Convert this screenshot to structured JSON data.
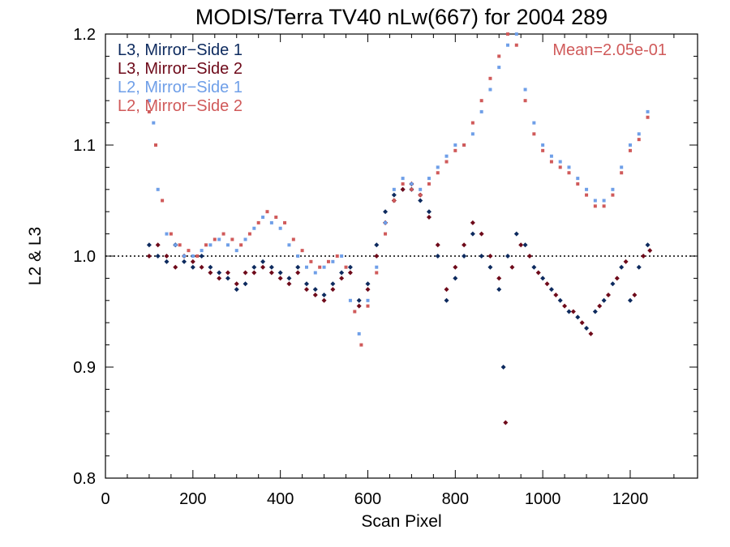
{
  "chart_data": {
    "type": "scatter",
    "title": "MODIS/Terra TV40 nLw(667) for 2004 289",
    "xlabel": "Scan Pixel",
    "ylabel": "L2 & L3",
    "xlim": [
      0,
      1354
    ],
    "ylim": [
      0.8,
      1.2
    ],
    "x_ticks": [
      0,
      200,
      400,
      600,
      800,
      1000,
      1200
    ],
    "x_tick_labels": [
      "0",
      "200",
      "400",
      "600",
      "800",
      "1000",
      "1200"
    ],
    "y_ticks": [
      0.8,
      0.9,
      1.0,
      1.1,
      1.2
    ],
    "y_tick_labels": [
      "0.8",
      "0.9",
      "1.0",
      "1.1",
      "1.2"
    ],
    "reference_line": 1.0,
    "annotation": "Mean=2.05e-01",
    "annotation_color": "#d05a5a",
    "legend_position": "top-left",
    "grid": false,
    "series": [
      {
        "name": "L3, Mirror−Side 1",
        "color": "#0d2a5e",
        "marker": "diamond",
        "points": [
          [
            100,
            1.01
          ],
          [
            120,
            1.0
          ],
          [
            140,
            0.995
          ],
          [
            160,
            1.01
          ],
          [
            180,
            0.995
          ],
          [
            200,
            0.99
          ],
          [
            220,
            1.0
          ],
          [
            240,
            0.99
          ],
          [
            260,
            0.985
          ],
          [
            280,
            0.98
          ],
          [
            300,
            0.97
          ],
          [
            320,
            0.975
          ],
          [
            340,
            0.99
          ],
          [
            360,
            0.995
          ],
          [
            380,
            0.99
          ],
          [
            400,
            0.985
          ],
          [
            420,
            0.98
          ],
          [
            440,
            0.99
          ],
          [
            460,
            0.975
          ],
          [
            480,
            0.97
          ],
          [
            500,
            0.965
          ],
          [
            520,
            0.975
          ],
          [
            540,
            0.985
          ],
          [
            560,
            0.99
          ],
          [
            580,
            0.96
          ],
          [
            600,
            0.975
          ],
          [
            620,
            1.01
          ],
          [
            640,
            1.04
          ],
          [
            660,
            1.055
          ],
          [
            680,
            1.06
          ],
          [
            700,
            1.06
          ],
          [
            720,
            1.05
          ],
          [
            740,
            1.04
          ],
          [
            760,
            1.0
          ],
          [
            780,
            0.96
          ],
          [
            800,
            0.98
          ],
          [
            820,
            1.0
          ],
          [
            840,
            1.02
          ],
          [
            860,
            1.0
          ],
          [
            880,
            0.99
          ],
          [
            900,
            0.97
          ],
          [
            910,
            0.9
          ],
          [
            920,
            1.0
          ],
          [
            940,
            1.02
          ],
          [
            960,
            1.01
          ],
          [
            980,
            0.99
          ],
          [
            1000,
            0.98
          ],
          [
            1020,
            0.97
          ],
          [
            1040,
            0.96
          ],
          [
            1060,
            0.95
          ],
          [
            1080,
            0.945
          ],
          [
            1100,
            0.935
          ],
          [
            1120,
            0.95
          ],
          [
            1140,
            0.96
          ],
          [
            1160,
            0.975
          ],
          [
            1180,
            0.99
          ],
          [
            1200,
            0.96
          ],
          [
            1220,
            0.99
          ],
          [
            1240,
            1.01
          ]
        ]
      },
      {
        "name": "L3, Mirror−Side 2",
        "color": "#6e0a1a",
        "marker": "diamond",
        "points": [
          [
            100,
            1.0
          ],
          [
            120,
            1.01
          ],
          [
            140,
            1.0
          ],
          [
            160,
            0.99
          ],
          [
            180,
            1.0
          ],
          [
            200,
            0.995
          ],
          [
            220,
            0.99
          ],
          [
            240,
            0.985
          ],
          [
            260,
            0.98
          ],
          [
            280,
            0.985
          ],
          [
            300,
            0.975
          ],
          [
            320,
            0.985
          ],
          [
            340,
            0.985
          ],
          [
            360,
            0.99
          ],
          [
            380,
            0.985
          ],
          [
            400,
            0.98
          ],
          [
            420,
            0.975
          ],
          [
            440,
            0.985
          ],
          [
            460,
            0.97
          ],
          [
            480,
            0.965
          ],
          [
            500,
            0.96
          ],
          [
            520,
            0.97
          ],
          [
            540,
            0.98
          ],
          [
            560,
            0.985
          ],
          [
            580,
            0.955
          ],
          [
            600,
            0.97
          ],
          [
            620,
            1.0
          ],
          [
            640,
            1.03
          ],
          [
            660,
            1.05
          ],
          [
            680,
            1.06
          ],
          [
            700,
            1.065
          ],
          [
            720,
            1.055
          ],
          [
            740,
            1.035
          ],
          [
            760,
            1.01
          ],
          [
            780,
            0.97
          ],
          [
            800,
            0.99
          ],
          [
            820,
            1.01
          ],
          [
            840,
            1.03
          ],
          [
            860,
            1.02
          ],
          [
            880,
            1.0
          ],
          [
            900,
            0.98
          ],
          [
            915,
            0.85
          ],
          [
            930,
            0.99
          ],
          [
            950,
            1.01
          ],
          [
            970,
            1.0
          ],
          [
            990,
            0.985
          ],
          [
            1010,
            0.975
          ],
          [
            1030,
            0.965
          ],
          [
            1050,
            0.955
          ],
          [
            1070,
            0.95
          ],
          [
            1090,
            0.94
          ],
          [
            1110,
            0.93
          ],
          [
            1130,
            0.955
          ],
          [
            1150,
            0.965
          ],
          [
            1170,
            0.98
          ],
          [
            1190,
            0.995
          ],
          [
            1210,
            0.965
          ],
          [
            1230,
            1.0
          ],
          [
            1245,
            1.005
          ]
        ]
      },
      {
        "name": "L2, Mirror−Side 1",
        "color": "#6f9fe8",
        "marker": "square",
        "points": [
          [
            100,
            1.14
          ],
          [
            110,
            1.12
          ],
          [
            120,
            1.06
          ],
          [
            140,
            1.02
          ],
          [
            160,
            1.01
          ],
          [
            180,
            1.0
          ],
          [
            200,
            1.0
          ],
          [
            220,
            1.005
          ],
          [
            240,
            1.01
          ],
          [
            260,
            1.015
          ],
          [
            280,
            1.01
          ],
          [
            300,
            1.005
          ],
          [
            320,
            1.015
          ],
          [
            340,
            1.025
          ],
          [
            360,
            1.035
          ],
          [
            380,
            1.03
          ],
          [
            400,
            1.025
          ],
          [
            420,
            1.01
          ],
          [
            440,
            1.0
          ],
          [
            460,
            0.99
          ],
          [
            480,
            0.985
          ],
          [
            500,
            0.99
          ],
          [
            520,
            0.995
          ],
          [
            540,
            1.0
          ],
          [
            560,
            0.96
          ],
          [
            580,
            0.93
          ],
          [
            600,
            0.96
          ],
          [
            620,
            0.99
          ],
          [
            640,
            1.03
          ],
          [
            660,
            1.06
          ],
          [
            680,
            1.07
          ],
          [
            700,
            1.065
          ],
          [
            720,
            1.06
          ],
          [
            740,
            1.07
          ],
          [
            760,
            1.08
          ],
          [
            780,
            1.09
          ],
          [
            800,
            1.1
          ],
          [
            820,
            1.1
          ],
          [
            840,
            1.11
          ],
          [
            860,
            1.13
          ],
          [
            880,
            1.15
          ],
          [
            900,
            1.17
          ],
          [
            920,
            1.19
          ],
          [
            940,
            1.2
          ],
          [
            960,
            1.15
          ],
          [
            980,
            1.12
          ],
          [
            1000,
            1.1
          ],
          [
            1020,
            1.09
          ],
          [
            1040,
            1.085
          ],
          [
            1060,
            1.08
          ],
          [
            1080,
            1.07
          ],
          [
            1100,
            1.06
          ],
          [
            1120,
            1.05
          ],
          [
            1140,
            1.05
          ],
          [
            1160,
            1.06
          ],
          [
            1180,
            1.08
          ],
          [
            1200,
            1.1
          ],
          [
            1220,
            1.11
          ],
          [
            1240,
            1.13
          ]
        ]
      },
      {
        "name": "L2, Mirror−Side 2",
        "color": "#d05a5a",
        "marker": "square",
        "points": [
          [
            100,
            1.13
          ],
          [
            115,
            1.1
          ],
          [
            130,
            1.05
          ],
          [
            150,
            1.02
          ],
          [
            170,
            1.01
          ],
          [
            190,
            1.005
          ],
          [
            210,
            1.0
          ],
          [
            230,
            1.01
          ],
          [
            250,
            1.015
          ],
          [
            270,
            1.02
          ],
          [
            290,
            1.015
          ],
          [
            310,
            1.01
          ],
          [
            330,
            1.02
          ],
          [
            350,
            1.03
          ],
          [
            370,
            1.04
          ],
          [
            390,
            1.035
          ],
          [
            410,
            1.03
          ],
          [
            430,
            1.015
          ],
          [
            450,
            1.005
          ],
          [
            470,
            0.995
          ],
          [
            490,
            0.99
          ],
          [
            510,
            0.995
          ],
          [
            530,
            1.0
          ],
          [
            550,
            0.99
          ],
          [
            570,
            0.95
          ],
          [
            585,
            0.92
          ],
          [
            600,
            0.955
          ],
          [
            620,
            0.985
          ],
          [
            640,
            1.02
          ],
          [
            660,
            1.05
          ],
          [
            680,
            1.065
          ],
          [
            700,
            1.06
          ],
          [
            720,
            1.055
          ],
          [
            740,
            1.065
          ],
          [
            760,
            1.075
          ],
          [
            780,
            1.085
          ],
          [
            800,
            1.095
          ],
          [
            820,
            1.1
          ],
          [
            840,
            1.12
          ],
          [
            860,
            1.14
          ],
          [
            880,
            1.16
          ],
          [
            900,
            1.18
          ],
          [
            920,
            1.2
          ],
          [
            940,
            1.19
          ],
          [
            960,
            1.14
          ],
          [
            980,
            1.11
          ],
          [
            1000,
            1.095
          ],
          [
            1020,
            1.085
          ],
          [
            1040,
            1.08
          ],
          [
            1060,
            1.075
          ],
          [
            1080,
            1.065
          ],
          [
            1100,
            1.055
          ],
          [
            1120,
            1.045
          ],
          [
            1140,
            1.045
          ],
          [
            1160,
            1.055
          ],
          [
            1180,
            1.075
          ],
          [
            1200,
            1.095
          ],
          [
            1220,
            1.105
          ],
          [
            1240,
            1.125
          ]
        ]
      }
    ]
  }
}
